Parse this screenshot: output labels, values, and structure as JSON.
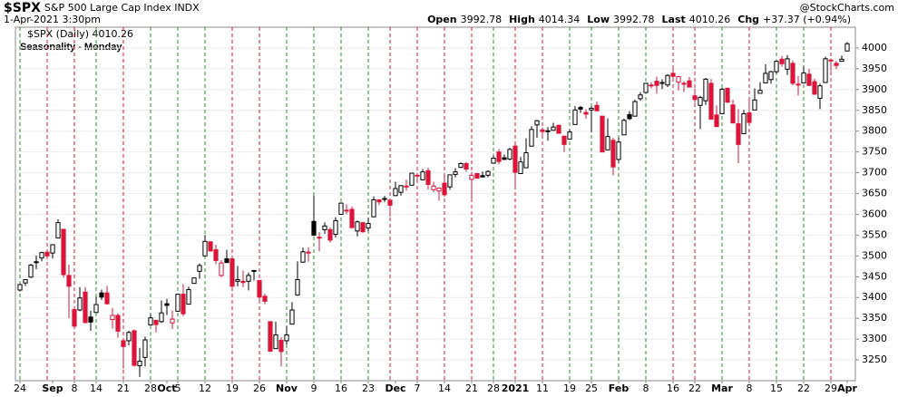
{
  "header": {
    "symbol": "$SPX",
    "name": "S&P 500 Large Cap Index INDX",
    "date": "1-Apr-2021 3:30pm",
    "quote": [
      {
        "label": "Open",
        "value": "3992.78"
      },
      {
        "label": "High",
        "value": "4014.34"
      },
      {
        "label": "Low",
        "value": "3992.78"
      },
      {
        "label": "Last",
        "value": "4010.26"
      },
      {
        "label": "Chg",
        "value": "+37.37 (+0.94%)"
      }
    ],
    "copyright": "@StockCharts.com"
  },
  "chart_data": {
    "type": "candlestick",
    "title": "Seasonality - Monday",
    "legend": "$SPX (Daily) 4010.26",
    "up_color": "#000000",
    "down_color": "#dc143c",
    "week_line_up_color": "#2e8b2e",
    "week_line_down_color": "#dc143c",
    "grid": true,
    "ylim": [
      3200,
      4050
    ],
    "yticks": [
      3250,
      3300,
      3350,
      3400,
      3450,
      3500,
      3550,
      3600,
      3650,
      3700,
      3750,
      3800,
      3850,
      3900,
      3950,
      4000
    ],
    "categories": [
      "24",
      null,
      null,
      null,
      null,
      null,
      "Sep",
      null,
      null,
      null,
      "8",
      null,
      null,
      null,
      "14",
      null,
      null,
      null,
      null,
      "21",
      null,
      null,
      null,
      null,
      "28",
      null,
      null,
      "Oct",
      null,
      "5",
      null,
      null,
      null,
      null,
      "12",
      null,
      null,
      null,
      null,
      "19",
      null,
      null,
      null,
      null,
      "26",
      null,
      null,
      null,
      null,
      "Nov",
      null,
      null,
      null,
      null,
      "9",
      null,
      null,
      null,
      null,
      "16",
      null,
      null,
      null,
      null,
      "23",
      null,
      null,
      null,
      null,
      "Dec",
      null,
      null,
      null,
      "7",
      null,
      null,
      null,
      null,
      "14",
      null,
      null,
      null,
      null,
      "21",
      null,
      null,
      null,
      "28",
      null,
      null,
      null,
      "2021",
      null,
      null,
      null,
      null,
      "11",
      null,
      null,
      null,
      null,
      "19",
      null,
      null,
      null,
      "25",
      null,
      null,
      null,
      null,
      "Feb",
      null,
      null,
      null,
      null,
      "8",
      null,
      null,
      null,
      null,
      "16",
      null,
      null,
      null,
      "22",
      null,
      null,
      null,
      null,
      "Mar",
      null,
      null,
      null,
      null,
      "8",
      null,
      null,
      null,
      null,
      "15",
      null,
      null,
      null,
      null,
      "22",
      null,
      null,
      null,
      null,
      "29",
      null,
      null,
      "Apr"
    ],
    "open": [
      3418,
      3435,
      3449,
      3486,
      3495,
      3509,
      3507,
      3543,
      3564,
      3453,
      3371,
      3370,
      3413,
      3353,
      3364,
      3411,
      3411,
      3347,
      3357,
      3296,
      3296,
      3320,
      3236,
      3256,
      3334,
      3345,
      3342,
      3385,
      3339,
      3367,
      3408,
      3384,
      3434,
      3463,
      3500,
      3534,
      3515,
      3453,
      3493,
      3493,
      3439,
      3439,
      3439,
      3464,
      3441,
      3403,
      3342,
      3277,
      3297,
      3296,
      3336,
      3406,
      3485,
      3508,
      3583,
      3543,
      3563,
      3563,
      3552,
      3600,
      3610,
      3612,
      3560,
      3580,
      3567,
      3594,
      3635,
      3638,
      3634,
      3645,
      3653,
      3668,
      3670,
      3694,
      3683,
      3705,
      3659,
      3656,
      3675,
      3666,
      3696,
      3713,
      3722,
      3684,
      3698,
      3693,
      3694,
      3723,
      3750,
      3736,
      3733,
      3764,
      3698,
      3712,
      3764,
      3815,
      3803,
      3801,
      3802,
      3814,
      3788,
      3781,
      3816,
      3857,
      3845,
      3851,
      3862,
      3836,
      3755,
      3778,
      3732,
      3791,
      3840,
      3836,
      3878,
      3893,
      3911,
      3920,
      3917,
      3911,
      3939,
      3918,
      3915,
      3921,
      3885,
      3862,
      3873,
      3915,
      3839,
      3842,
      3903,
      3863,
      3818,
      3794,
      3844,
      3851,
      3891,
      3916,
      3924,
      3943,
      3973,
      3949,
      3963,
      3913,
      3916,
      3937,
      3919,
      3879,
      3917,
      3969,
      3963,
      3968,
      3992.78
    ],
    "high": [
      3433,
      3444,
      3481,
      3501,
      3510,
      3514,
      3528,
      3588,
      3564,
      3479,
      3379,
      3425,
      3425,
      3368,
      3402,
      3419,
      3428,
      3375,
      3362,
      3302,
      3320,
      3323,
      3279,
      3306,
      3360,
      3347,
      3393,
      3397,
      3369,
      3409,
      3432,
      3426,
      3447,
      3482,
      3550,
      3534,
      3527,
      3490,
      3515,
      3496,
      3476,
      3465,
      3460,
      3466,
      3441,
      3409,
      3342,
      3342,
      3305,
      3331,
      3389,
      3487,
      3520,
      3521,
      3645,
      3557,
      3581,
      3569,
      3593,
      3628,
      3624,
      3619,
      3585,
      3581,
      3592,
      3643,
      3635,
      3644,
      3634,
      3678,
      3670,
      3683,
      3700,
      3697,
      3709,
      3712,
      3678,
      3665,
      3697,
      3695,
      3711,
      3725,
      3726,
      3702,
      3698,
      3703,
      3706,
      3741,
      3757,
      3744,
      3760,
      3770,
      3738,
      3783,
      3812,
      3827,
      3809,
      3810,
      3820,
      3816,
      3788,
      3805,
      3860,
      3861,
      3853,
      3860,
      3871,
      3836,
      3831,
      3784,
      3784,
      3830,
      3848,
      3876,
      3894,
      3916,
      3918,
      3931,
      3925,
      3937,
      3951,
      3933,
      3920,
      3930,
      3902,
      3885,
      3928,
      3925,
      3862,
      3904,
      3905,
      3875,
      3853,
      3851,
      3882,
      3903,
      3918,
      3961,
      3945,
      3970,
      3981,
      3983,
      3970,
      3933,
      3956,
      3950,
      3926,
      3914,
      3979,
      3975,
      3969,
      3982,
      4014.34
    ],
    "low": [
      3414,
      3428,
      3447,
      3468,
      3487,
      3495,
      3494,
      3543,
      3448,
      3350,
      3329,
      3367,
      3337,
      3320,
      3363,
      3394,
      3383,
      3325,
      3303,
      3229,
      3285,
      3234,
      3209,
      3234,
      3333,
      3316,
      3339,
      3358,
      3324,
      3366,
      3355,
      3384,
      3434,
      3445,
      3500,
      3510,
      3480,
      3449,
      3483,
      3425,
      3427,
      3425,
      3417,
      3441,
      3386,
      3384,
      3269,
      3277,
      3234,
      3287,
      3336,
      3404,
      3484,
      3486,
      3548,
      3511,
      3553,
      3532,
      3544,
      3600,
      3600,
      3567,
      3547,
      3556,
      3560,
      3594,
      3622,
      3630,
      3594,
      3645,
      3645,
      3657,
      3670,
      3679,
      3681,
      3660,
      3654,
      3633,
      3642,
      3659,
      3689,
      3711,
      3702,
      3636,
      3686,
      3689,
      3689,
      3723,
      3720,
      3731,
      3730,
      3663,
      3697,
      3712,
      3764,
      3784,
      3788,
      3777,
      3802,
      3795,
      3750,
      3781,
      3816,
      3844,
      3830,
      3797,
      3847,
      3749,
      3755,
      3694,
      3725,
      3791,
      3827,
      3836,
      3873,
      3893,
      3903,
      3890,
      3901,
      3906,
      3926,
      3898,
      3894,
      3906,
      3868,
      3805,
      3863,
      3828,
      3811,
      3842,
      3867,
      3818,
      3723,
      3794,
      3819,
      3851,
      3891,
      3916,
      3914,
      3938,
      3955,
      3935,
      3910,
      3886,
      3916,
      3909,
      3887,
      3853,
      3917,
      3944,
      3949,
      3968,
      3992.78
    ],
    "close": [
      3431,
      3443,
      3478,
      3485,
      3508,
      3500,
      3527,
      3580,
      3455,
      3427,
      3331,
      3399,
      3340,
      3341,
      3383,
      3401,
      3385,
      3357,
      3319,
      3282,
      3316,
      3237,
      3247,
      3298,
      3351,
      3335,
      3363,
      3381,
      3348,
      3408,
      3361,
      3419,
      3447,
      3477,
      3535,
      3512,
      3489,
      3483,
      3484,
      3427,
      3443,
      3436,
      3453,
      3465,
      3401,
      3391,
      3271,
      3310,
      3270,
      3310,
      3370,
      3443,
      3510,
      3509,
      3550,
      3545,
      3572,
      3538,
      3585,
      3627,
      3610,
      3568,
      3582,
      3558,
      3578,
      3635,
      3630,
      3638,
      3622,
      3662,
      3669,
      3666,
      3699,
      3692,
      3702,
      3672,
      3668,
      3663,
      3647,
      3695,
      3702,
      3722,
      3709,
      3694,
      3687,
      3690,
      3703,
      3735,
      3727,
      3732,
      3756,
      3701,
      3726,
      3748,
      3804,
      3825,
      3799,
      3801,
      3810,
      3795,
      3768,
      3798,
      3851,
      3853,
      3841,
      3855,
      3849,
      3750,
      3787,
      3714,
      3774,
      3826,
      3830,
      3871,
      3887,
      3915,
      3911,
      3910,
      3916,
      3934,
      3932,
      3931,
      3914,
      3906,
      3876,
      3881,
      3925,
      3829,
      3811,
      3901,
      3870,
      3820,
      3768,
      3842,
      3821,
      3875,
      3898,
      3939,
      3943,
      3968,
      3962,
      3974,
      3915,
      3913,
      3940,
      3910,
      3889,
      3909,
      3974,
      3971,
      3958,
      3973,
      4010.26
    ]
  }
}
